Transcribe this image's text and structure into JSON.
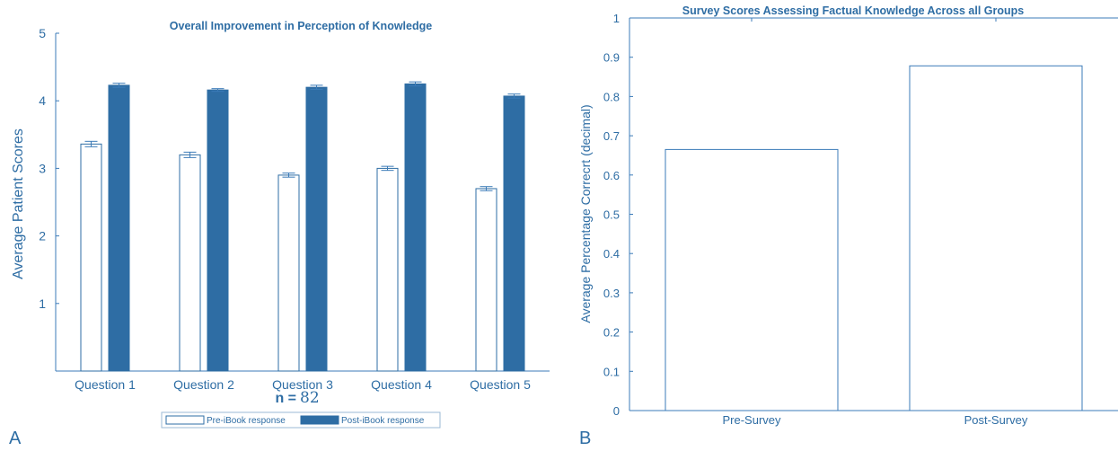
{
  "colors": {
    "accent": "#2e6da4",
    "post_fill": "#2e6da4",
    "pre_fill": "#ffffff",
    "text": "#2e6da4",
    "axis": "#3b7bb8"
  },
  "chart_data": [
    {
      "type": "bar",
      "panel_label": "A",
      "title": "Overall Improvement in Perception of Knowledge",
      "xlabel": "",
      "ylabel": "Average Patient Scores",
      "ylim": [
        0,
        5
      ],
      "yticks": [
        1,
        2,
        3,
        4,
        5
      ],
      "categories": [
        "Question 1",
        "Question 2",
        "Question 3",
        "Question 4",
        "Question 5"
      ],
      "series": [
        {
          "name": "Pre-iBook response",
          "values": [
            3.36,
            3.2,
            2.9,
            3.0,
            2.7
          ],
          "error": [
            0.04,
            0.04,
            0.03,
            0.03,
            0.03
          ]
        },
        {
          "name": "Post-iBook response",
          "values": [
            4.23,
            4.16,
            4.2,
            4.25,
            4.07
          ],
          "error": [
            0.03,
            0.02,
            0.03,
            0.03,
            0.03
          ]
        }
      ],
      "annotation": {
        "label": "n =",
        "value": "82"
      },
      "legend": "bottom-center",
      "grid": false
    },
    {
      "type": "bar",
      "panel_label": "B",
      "title": "Survey Scores Assessing Factual Knowledge Across all Groups",
      "xlabel": "",
      "ylabel": "Average Percentage Correcrt (decimal)",
      "ylim": [
        0,
        1
      ],
      "yticks": [
        "0",
        "0.1",
        "0.2",
        "0.3",
        "0.4",
        "0.5",
        "0.6",
        "0.7",
        "0.8",
        "0.9",
        "1"
      ],
      "categories": [
        "Pre-Survey",
        "Post-Survey"
      ],
      "values": [
        0.665,
        0.878
      ],
      "grid": false
    }
  ]
}
